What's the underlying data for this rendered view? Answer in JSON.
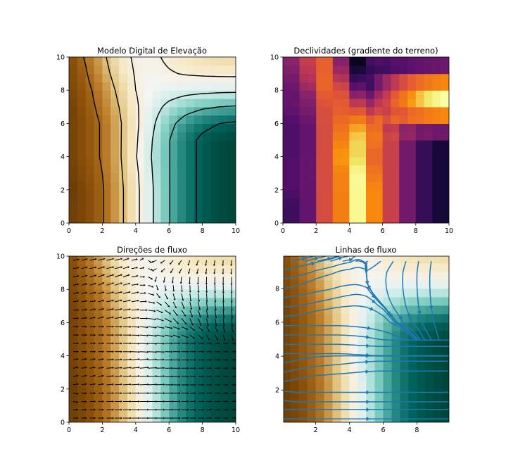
{
  "chart_data": [
    {
      "type": "heatmap",
      "title": "Modelo Digital de Elevação",
      "colormap": "BrBG",
      "contours": true,
      "xlim": [
        0,
        10
      ],
      "ylim": [
        0,
        10
      ],
      "xticks": [
        "0",
        "2",
        "4",
        "6",
        "8",
        "10"
      ],
      "yticks": [
        "0",
        "2",
        "4",
        "6",
        "8",
        "10"
      ],
      "grid_x": [
        0,
        1,
        2,
        3,
        4,
        5,
        6,
        7,
        8,
        9,
        10
      ],
      "grid_y": [
        0,
        1,
        2,
        3,
        4,
        5,
        6,
        7,
        8,
        9,
        10
      ],
      "elevation_normalized": [
        [
          0.04,
          0.08,
          0.14,
          0.26,
          0.41,
          0.59,
          0.745,
          0.857,
          0.924,
          0.961,
          0.98
        ],
        [
          0.04,
          0.08,
          0.14,
          0.26,
          0.41,
          0.59,
          0.745,
          0.857,
          0.924,
          0.961,
          0.98
        ],
        [
          0.03,
          0.08,
          0.14,
          0.26,
          0.41,
          0.59,
          0.745,
          0.857,
          0.924,
          0.961,
          0.98
        ],
        [
          0.04,
          0.09,
          0.15,
          0.27,
          0.42,
          0.6,
          0.745,
          0.857,
          0.924,
          0.961,
          0.98
        ],
        [
          0.05,
          0.1,
          0.16,
          0.28,
          0.44,
          0.61,
          0.745,
          0.857,
          0.924,
          0.961,
          0.98
        ],
        [
          0.05,
          0.1,
          0.16,
          0.28,
          0.43,
          0.6,
          0.745,
          0.857,
          0.924,
          0.961,
          0.98
        ],
        [
          0.05,
          0.1,
          0.16,
          0.28,
          0.42,
          0.577,
          0.712,
          0.808,
          0.867,
          0.899,
          0.916
        ],
        [
          0.05,
          0.11,
          0.18,
          0.3,
          0.43,
          0.548,
          0.633,
          0.693,
          0.73,
          0.75,
          0.76
        ],
        [
          0.06,
          0.12,
          0.2,
          0.33,
          0.45,
          0.514,
          0.539,
          0.556,
          0.567,
          0.573,
          0.576
        ],
        [
          0.07,
          0.14,
          0.24,
          0.37,
          0.46,
          0.485,
          0.46,
          0.441,
          0.43,
          0.424,
          0.421
        ],
        [
          0.08,
          0.16,
          0.27,
          0.4,
          0.47,
          0.473,
          0.427,
          0.393,
          0.373,
          0.362,
          0.356
        ]
      ],
      "contour_levels": [
        0.15,
        0.3,
        0.45,
        0.6,
        0.75,
        0.9
      ]
    },
    {
      "type": "heatmap",
      "title": "Declividades (gradiente do terreno)",
      "colormap": "inferno",
      "derived_from": "gradient magnitude of elevation",
      "xlim": [
        0,
        10
      ],
      "ylim": [
        0,
        10
      ],
      "xticks": [
        "0",
        "2",
        "4",
        "6",
        "8",
        "10"
      ],
      "yticks": [
        "0",
        "2",
        "4",
        "6",
        "8",
        "10"
      ]
    },
    {
      "type": "quiver",
      "title": "Direções de fluxo",
      "colormap": "BrBG",
      "xlim": [
        0,
        10
      ],
      "ylim": [
        0,
        10
      ],
      "xticks": [
        "0",
        "2",
        "4",
        "6",
        "8",
        "10"
      ],
      "yticks": [
        "0",
        "2",
        "4",
        "6",
        "8",
        "10"
      ]
    },
    {
      "type": "streamplot",
      "title": "Linhas de fluxo",
      "colormap": "BrBG",
      "line_color": "#1f77b4",
      "xlim": [
        0.1,
        9.9
      ],
      "ylim": [
        0.1,
        9.9
      ],
      "xticks": [
        "2",
        "4",
        "6",
        "8"
      ],
      "yticks": [
        "2",
        "4",
        "6",
        "8"
      ]
    }
  ]
}
